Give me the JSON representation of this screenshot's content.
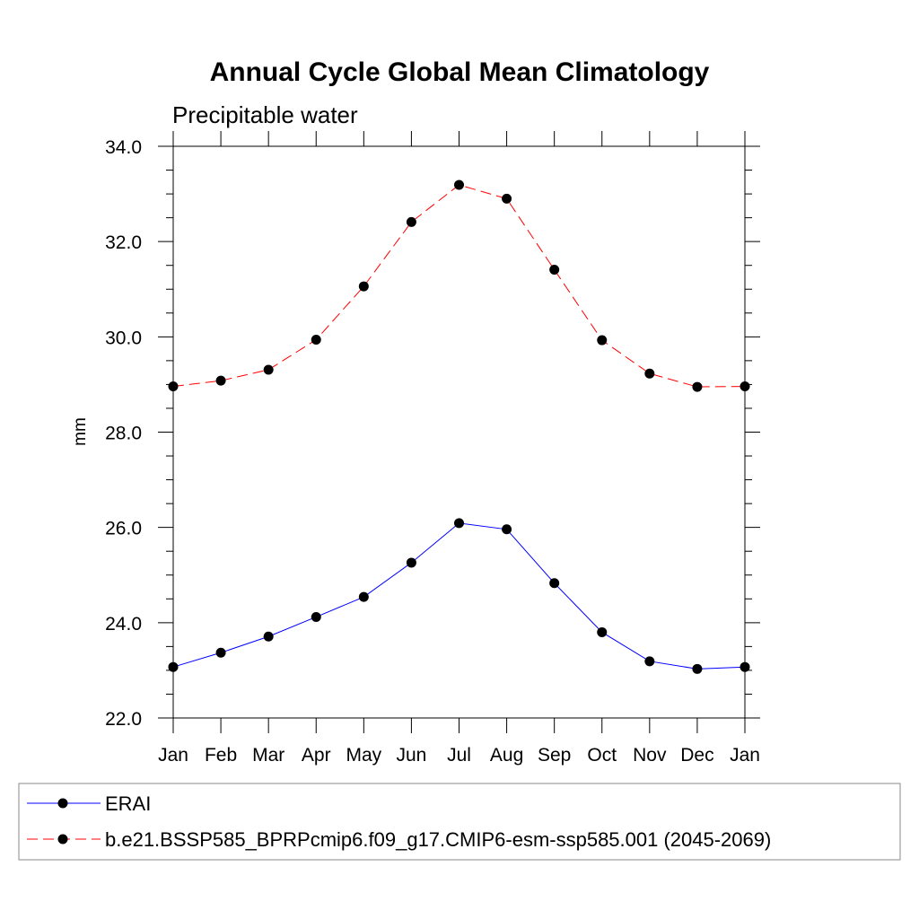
{
  "chart_data": {
    "type": "line",
    "title": "Annual Cycle Global Mean Climatology",
    "subtitle": "Precipitable water",
    "xlabel": "",
    "ylabel": "mm",
    "categories": [
      "Jan",
      "Feb",
      "Mar",
      "Apr",
      "May",
      "Jun",
      "Jul",
      "Aug",
      "Sep",
      "Oct",
      "Nov",
      "Dec",
      "Jan"
    ],
    "ylim": [
      22.0,
      34.0
    ],
    "yticks": [
      22.0,
      24.0,
      26.0,
      28.0,
      30.0,
      32.0,
      34.0
    ],
    "ytick_labels": [
      "22.0",
      "24.0",
      "26.0",
      "28.0",
      "30.0",
      "32.0",
      "34.0"
    ],
    "grid": false,
    "legend_position": "bottom",
    "series": [
      {
        "name": "ERAI",
        "color": "#0000ff",
        "dash": "solid",
        "values": [
          23.07,
          23.37,
          23.71,
          24.12,
          24.54,
          25.26,
          26.09,
          25.96,
          24.83,
          23.8,
          23.19,
          23.03,
          23.07
        ]
      },
      {
        "name": "b.e21.BSSP585_BPRPcmip6.f09_g17.CMIP6-esm-ssp585.001 (2045-2069)",
        "color": "#ff0000",
        "dash": "dashed",
        "values": [
          28.96,
          29.08,
          29.31,
          29.94,
          31.06,
          32.41,
          33.19,
          32.9,
          31.41,
          29.93,
          29.23,
          28.95,
          28.96
        ]
      }
    ]
  }
}
